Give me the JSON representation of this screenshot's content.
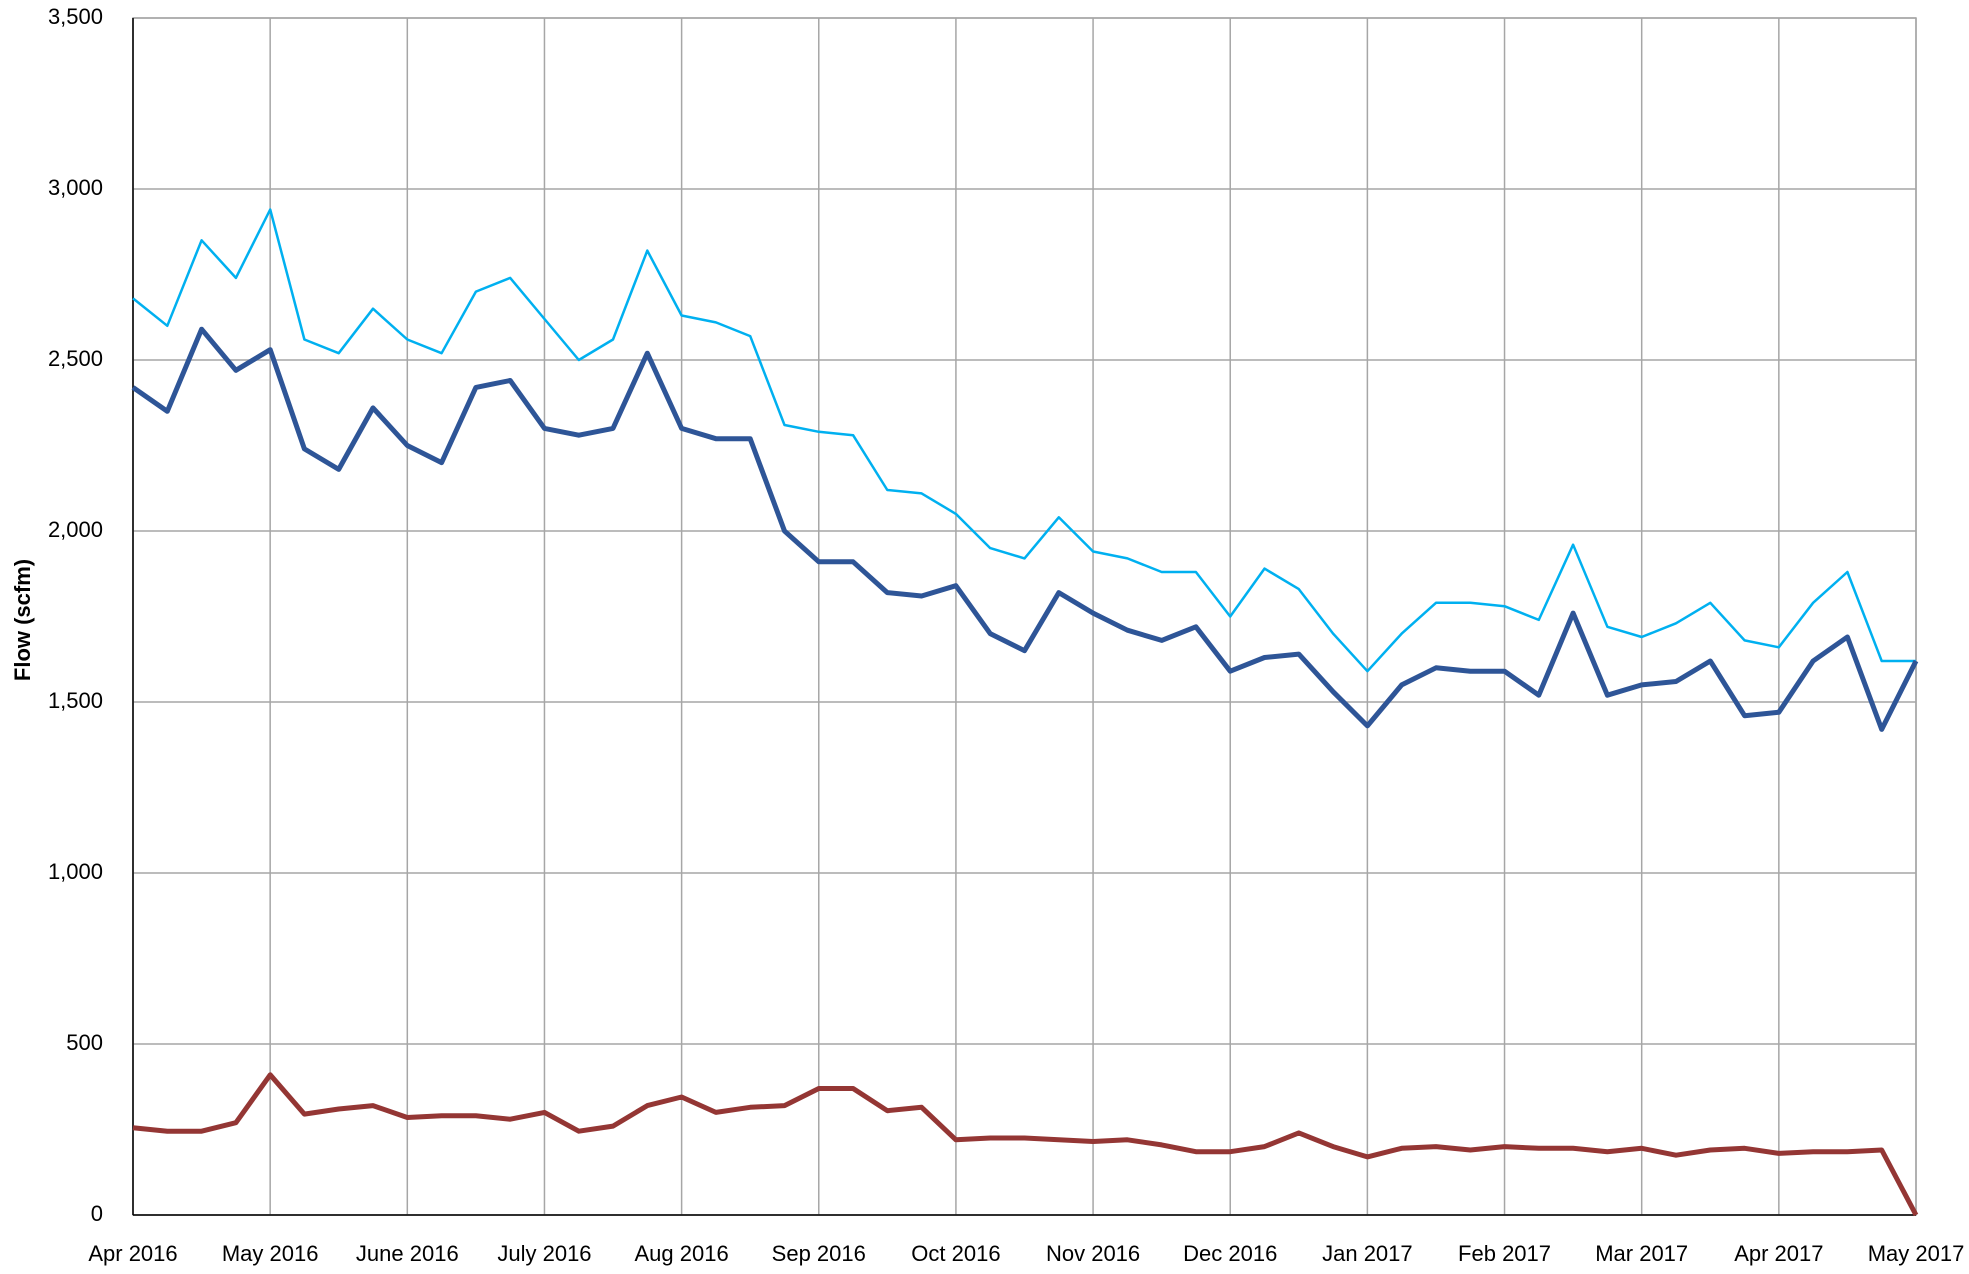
{
  "chart_data": {
    "type": "line",
    "y_label": "Flow (scfm)",
    "categories": [
      "Apr 2016",
      null,
      null,
      null,
      "May 2016",
      null,
      null,
      null,
      "June 2016",
      null,
      null,
      null,
      "July  2016",
      null,
      null,
      null,
      "Aug 2016",
      null,
      null,
      null,
      "Sep 2016",
      null,
      null,
      null,
      "Oct 2016",
      null,
      null,
      null,
      "Nov 2016",
      null,
      null,
      null,
      "Dec 2016",
      null,
      null,
      null,
      "Jan 2017",
      null,
      null,
      null,
      "Feb 2017",
      null,
      null,
      null,
      "Mar 2017",
      null,
      null,
      null,
      "Apr 2017",
      null,
      null,
      null,
      "May 2017"
    ],
    "series": [
      {
        "color": "#00b0f0",
        "values": [
          2680,
          2600,
          2850,
          2740,
          2940,
          2560,
          2520,
          2650,
          2560,
          2520,
          2700,
          2740,
          2620,
          2500,
          2560,
          2820,
          2630,
          2610,
          2570,
          2310,
          2290,
          2280,
          2120,
          2110,
          2050,
          1950,
          1920,
          2040,
          1940,
          1920,
          1880,
          1880,
          1750,
          1890,
          1830,
          1700,
          1590,
          1700,
          1790,
          1790,
          1780,
          1740,
          1960,
          1720,
          1690,
          1730,
          1790,
          1680,
          1660,
          1790,
          1880,
          1620,
          1620
        ]
      },
      {
        "color": "#2e5597",
        "values": [
          2420,
          2350,
          2590,
          2470,
          2530,
          2240,
          2180,
          2360,
          2250,
          2200,
          2420,
          2440,
          2300,
          2280,
          2300,
          2520,
          2300,
          2270,
          2270,
          2000,
          1910,
          1910,
          1820,
          1810,
          1840,
          1700,
          1650,
          1820,
          1760,
          1710,
          1680,
          1720,
          1590,
          1630,
          1640,
          1530,
          1430,
          1550,
          1600,
          1590,
          1590,
          1520,
          1760,
          1520,
          1550,
          1560,
          1620,
          1460,
          1470,
          1620,
          1690,
          1420,
          1620
        ]
      },
      {
        "color": "#943634",
        "values": [
          255,
          245,
          245,
          270,
          410,
          295,
          310,
          320,
          285,
          290,
          290,
          280,
          300,
          245,
          260,
          320,
          345,
          300,
          315,
          320,
          370,
          370,
          305,
          315,
          220,
          225,
          225,
          220,
          215,
          220,
          205,
          185,
          185,
          200,
          240,
          200,
          170,
          195,
          200,
          190,
          200,
          195,
          195,
          185,
          195,
          175,
          190,
          195,
          180,
          185,
          185,
          190,
          0
        ]
      }
    ],
    "ylim": [
      0,
      3500
    ],
    "yticks": [
      0,
      500,
      {
        "value": 1000,
        "label": "1,000"
      },
      {
        "value": 1500,
        "label": "1,500"
      },
      {
        "value": 2000,
        "label": "2,000"
      },
      {
        "value": 2500,
        "label": "2,500"
      },
      {
        "value": 3000,
        "label": "3,000"
      },
      {
        "value": 3500,
        "label": "3,500"
      }
    ],
    "grid": true
  }
}
